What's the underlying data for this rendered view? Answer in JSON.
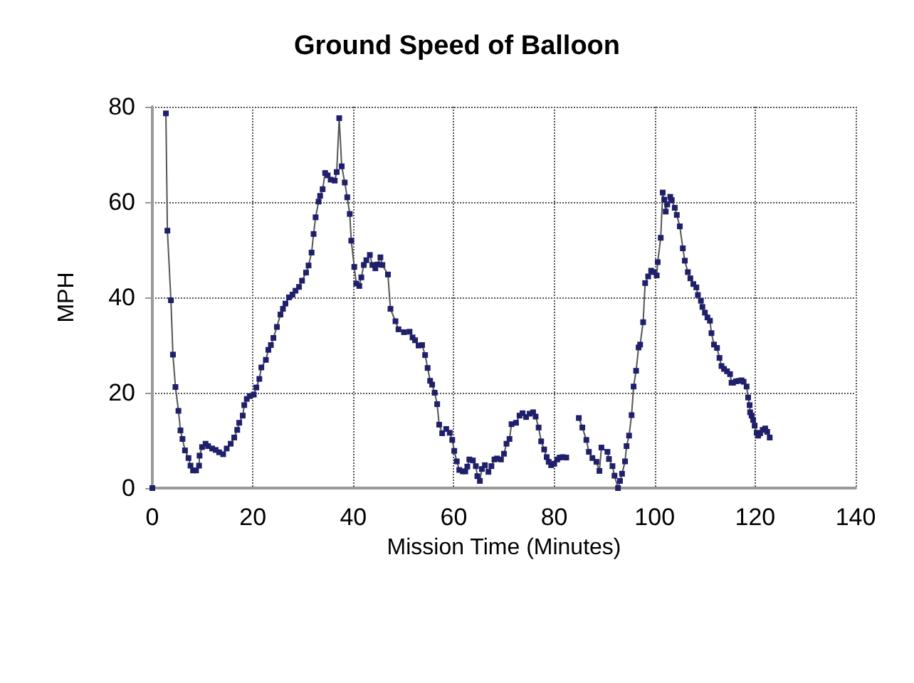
{
  "chart_data": {
    "type": "line",
    "title": "Ground Speed of Balloon",
    "xlabel": "Mission Time (Minutes)",
    "ylabel": "MPH",
    "xlim": [
      0,
      140
    ],
    "xticks": [
      0,
      20,
      40,
      60,
      80,
      100,
      120,
      140
    ],
    "ylim": [
      0,
      80
    ],
    "yticks": [
      0,
      20,
      40,
      60,
      80
    ],
    "grid": true,
    "marker": "square",
    "line_style": "solid",
    "series": [
      {
        "color": "#1f1f6b",
        "x": [
          0,
          1.5,
          2.7,
          3.0,
          3.7,
          4.1,
          4.6,
          5.2,
          5.6,
          6.0,
          6.5,
          7.2,
          7.6,
          8.1,
          8.7,
          9.3,
          9.4,
          9.9,
          10.6,
          11.1,
          11.9,
          12.6,
          13.3,
          14.1,
          14.8,
          15.6,
          16.3,
          16.9,
          17.3,
          18.0,
          18.3,
          18.8,
          19.4,
          20.2,
          20.7,
          21.3,
          21.7,
          22.6,
          23.1,
          23.6,
          24.1,
          24.8,
          25.5,
          26.0,
          26.5,
          27.2,
          27.9,
          28.5,
          29.2,
          29.8,
          30.6,
          31.1,
          31.7,
          32.1,
          32.5,
          33.1,
          33.4,
          33.9,
          34.4,
          34.9,
          35.5,
          36.3,
          36.7,
          37.2,
          37.7,
          38.3,
          38.8,
          39.3,
          39.6,
          40.2,
          40.6,
          41.2,
          41.6,
          42.1,
          42.6,
          43.3,
          43.8,
          44.4,
          44.8,
          45.4,
          45.8,
          46.9,
          47.4,
          48.4,
          49.0,
          50.1,
          51.2,
          51.8,
          52.3,
          53.0,
          53.7,
          54.3,
          54.8,
          55.3,
          55.7,
          56.2,
          56.7,
          57.1,
          57.7,
          58.5,
          59.2,
          59.7,
          60.1,
          60.6,
          61.1,
          61.8,
          62.3,
          62.7,
          63.1,
          63.8,
          64.4,
          64.7,
          65.2,
          65.6,
          66.2,
          66.9,
          67.5,
          68.1,
          68.6,
          69.4,
          70.0,
          70.5,
          71.1,
          71.5,
          72.4,
          73.1,
          73.7,
          74.4,
          75.1,
          75.8,
          76.3,
          76.9,
          77.4,
          78.0,
          78.5,
          78.9,
          79.4,
          80.0,
          80.6,
          81.1,
          81.7,
          82.4,
          83.6,
          84.9,
          85.6,
          86.4,
          86.9,
          87.6,
          88.4,
          89.0,
          89.4,
          90.6,
          90.9,
          91.6,
          92.0,
          92.7,
          93.1,
          93.5,
          94.1,
          94.4,
          94.9,
          95.4,
          95.8,
          96.3,
          96.8,
          97.1,
          97.7,
          98.1,
          98.7,
          99.3,
          99.8,
          100.4,
          100.6,
          101.2,
          101.6,
          101.9,
          102.2,
          102.5,
          103.1,
          103.4,
          104.0,
          104.4,
          105.0,
          105.6,
          106.0,
          106.6,
          107.1,
          107.7,
          108.3,
          108.6,
          109.2,
          109.5,
          110.0,
          110.5,
          111.0,
          111.3,
          111.8,
          112.4,
          112.9,
          113.3,
          113.8,
          114.4,
          115.0,
          115.3,
          115.6,
          116.2,
          116.8,
          117.3,
          117.7,
          118.3,
          118.6,
          118.9,
          119.0,
          119.3,
          119.6,
          119.9,
          120.3,
          120.6,
          121.0,
          121.5,
          122.0,
          122.4,
          122.9
        ],
        "values": [
          0,
          null,
          78.6,
          54,
          39.4,
          28,
          21.2,
          16.2,
          12.1,
          10.3,
          7.9,
          6.3,
          4.7,
          3.7,
          3.7,
          4.7,
          6.8,
          8.6,
          9.3,
          8.8,
          8.3,
          8.0,
          7.5,
          7.1,
          8.3,
          9.3,
          10.6,
          12.2,
          13.7,
          15.2,
          17.4,
          18.7,
          19.3,
          19.6,
          21.1,
          22.9,
          25.3,
          26.9,
          29,
          30,
          31.5,
          33.8,
          36.4,
          37.6,
          38.7,
          40,
          40.6,
          41.4,
          42.2,
          43.5,
          45.2,
          46.7,
          49.4,
          53.3,
          56.8,
          60.1,
          61.3,
          62.7,
          66.1,
          65.6,
          64.7,
          64.5,
          66.3,
          77.6,
          67.5,
          64.1,
          61.0,
          57.5,
          51.9,
          46.4,
          42.9,
          42.4,
          44.2,
          46.8,
          47.8,
          48.9,
          46.8,
          46.1,
          46.9,
          48.4,
          46.8,
          44.8,
          37.6,
          35,
          33.3,
          32.7,
          32.8,
          31.6,
          31,
          29.9,
          30,
          27.9,
          25.2,
          22.5,
          21.7,
          20,
          17.6,
          13.3,
          11.5,
          12.4,
          11.6,
          10.1,
          7.8,
          5.6,
          3.8,
          3.5,
          3.5,
          4.5,
          6.0,
          5.8,
          4.6,
          2.5,
          1.5,
          4.0,
          4.8,
          3.4,
          4.6,
          6.0,
          6.2,
          6.0,
          7.2,
          9.3,
          10.3,
          13.4,
          13.7,
          15.2,
          15.7,
          14.9,
          15.6,
          15.9,
          15.0,
          12.7,
          9.8,
          8.1,
          6.5,
          5.5,
          4.8,
          5.1,
          6.0,
          6.4,
          6.5,
          6.4,
          null,
          14.7,
          12.7,
          10.1,
          7.6,
          6.3,
          5.5,
          3.6,
          8.5,
          7.6,
          6.1,
          4.6,
          2.6,
          0,
          1.5,
          3.0,
          5.6,
          8.8,
          11,
          15.3,
          21.3,
          24.6,
          29.5,
          30.1,
          34.8,
          43,
          44.4,
          45.6,
          45.3,
          44.6,
          47.4,
          52.5,
          62,
          60.5,
          58,
          59.5,
          61.1,
          60.4,
          58.8,
          57.3,
          54.9,
          50.3,
          47.7,
          45.3,
          44,
          42.8,
          42.1,
          40.5,
          39.3,
          38,
          36.8,
          35.8,
          35.1,
          32.5,
          30.1,
          29.4,
          27.3,
          25.6,
          25,
          24.5,
          23.9,
          22.1,
          22.1,
          22.4,
          22.5,
          22.6,
          22.3,
          21.3,
          19,
          17.4,
          15.9,
          15.2,
          14.3,
          13.1,
          11.6,
          11.0,
          11.5,
          12.2,
          12.5,
          11.8,
          10.6
        ]
      }
    ]
  }
}
